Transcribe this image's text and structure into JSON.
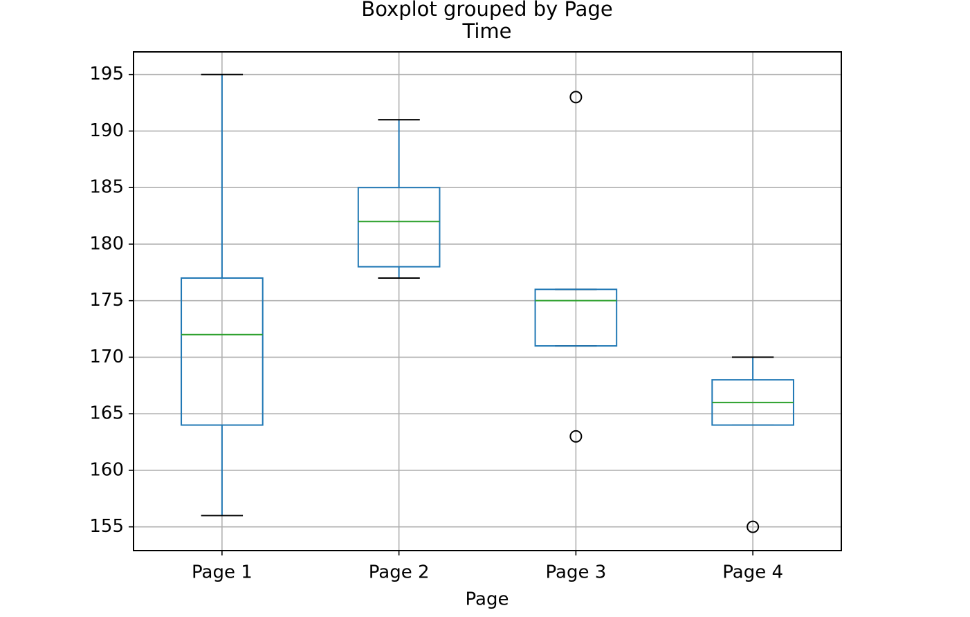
{
  "chart_data": {
    "type": "box",
    "title": "Boxplot grouped by Page",
    "subtitle": "Time",
    "x_label": "Page",
    "categories": [
      "Page 1",
      "Page 2",
      "Page 3",
      "Page 4"
    ],
    "boxes": [
      {
        "whislo": 156,
        "q1": 164,
        "med": 172,
        "q3": 177,
        "whishi": 195,
        "fliers": []
      },
      {
        "whislo": 177,
        "q1": 178,
        "med": 182,
        "q3": 185,
        "whishi": 191,
        "fliers": []
      },
      {
        "whislo": 171,
        "q1": 171,
        "med": 175,
        "q3": 176,
        "whishi": 176,
        "fliers": [
          193,
          163
        ]
      },
      {
        "whislo": 164,
        "q1": 164,
        "med": 166,
        "q3": 168,
        "whishi": 170,
        "fliers": [
          155
        ]
      }
    ],
    "ylim": [
      152.9,
      197.0
    ],
    "yticks": [
      155,
      160,
      165,
      170,
      175,
      180,
      185,
      190,
      195
    ],
    "grid": true,
    "box_color": "#1f77b4",
    "median_color": "#2ca02c",
    "flier_color": "#000000"
  }
}
